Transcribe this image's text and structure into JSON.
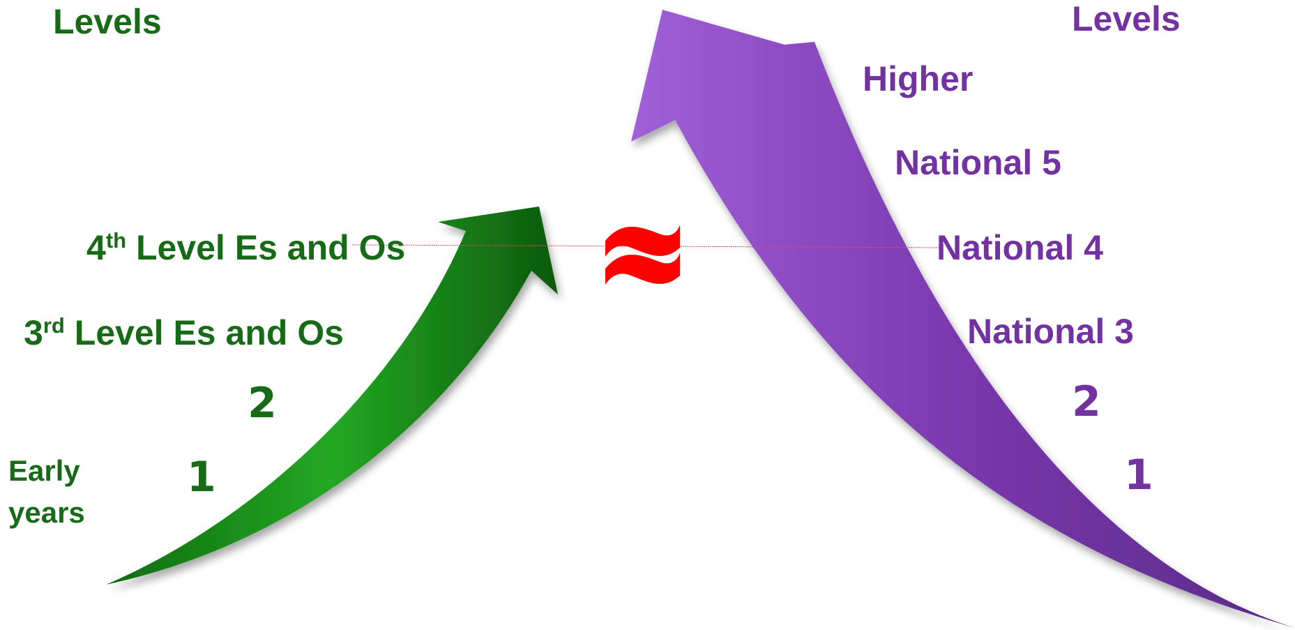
{
  "left": {
    "heading": "Levels",
    "level4": {
      "base": "4",
      "sup": "th",
      "rest": " Level Es and Os"
    },
    "level3": {
      "base": "3",
      "sup": "rd",
      "rest": " Level Es and Os"
    },
    "level2": "2",
    "level1": "1",
    "early_line1": "Early",
    "early_line2": "years",
    "color": "#176b17"
  },
  "right": {
    "heading": "Levels",
    "higher": "Higher",
    "national5": "National 5",
    "national4": "National 4",
    "national3": "National 3",
    "level2": "2",
    "level1": "1",
    "color": "#7232a0"
  },
  "equivalence_symbol": "≈",
  "colors": {
    "green_arrow": "#1f9a1f",
    "purple_arrow": "#7a38ad",
    "symbol": "#ff0000",
    "connector_line": "#e05050"
  }
}
